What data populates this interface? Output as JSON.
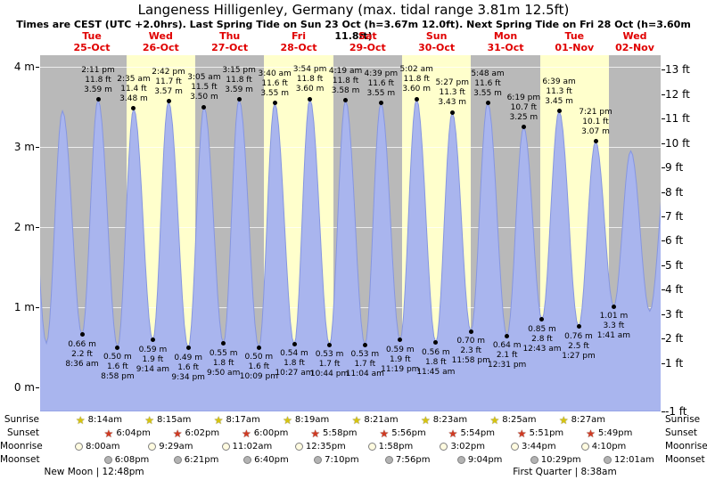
{
  "title": "Langeness Hilligenley, Germany (max. tidal range 3.81m 12.5ft)",
  "subtitle": "Times are CEST (UTC +2.0hrs). Last Spring Tide on Sun 23 Oct (h=3.67m 12.0ft). Next Spring Tide on Fri 28 Oct (h=3.60m 11.8ft)",
  "days": [
    {
      "name": "Tue",
      "date": "25-Oct"
    },
    {
      "name": "Wed",
      "date": "26-Oct"
    },
    {
      "name": "Thu",
      "date": "27-Oct"
    },
    {
      "name": "Fri",
      "date": "28-Oct"
    },
    {
      "name": "Sat",
      "date": "29-Oct"
    },
    {
      "name": "Sun",
      "date": "30-Oct"
    },
    {
      "name": "Mon",
      "date": "31-Oct"
    },
    {
      "name": "Tue",
      "date": "01-Nov"
    },
    {
      "name": "Wed",
      "date": "02-Nov"
    }
  ],
  "axes": {
    "left_labels": [
      "4 m",
      "3 m",
      "2 m",
      "1 m",
      "0 m"
    ],
    "left_values_m": [
      4,
      3,
      2,
      1,
      0
    ],
    "right_labels": [
      "13 ft",
      "12 ft",
      "11 ft",
      "10 ft",
      "9 ft",
      "8 ft",
      "7 ft",
      "6 ft",
      "5 ft",
      "4 ft",
      "3 ft",
      "2 ft",
      "1 ft",
      "-1 ft"
    ],
    "right_values_ft": [
      13,
      12,
      11,
      10,
      9,
      8,
      7,
      6,
      5,
      4,
      3,
      2,
      1,
      -1
    ]
  },
  "chart_data": {
    "type": "area",
    "x_unit": "hours from Tue 25-Oct 00:00 (CEST)",
    "x_range_hours": [
      -6,
      210
    ],
    "ylim_m": [
      -0.3,
      4.14
    ],
    "ylabel_left": "m",
    "ylabel_right": "ft",
    "max_tidal_range": "3.81m 12.5ft",
    "tide_events": [
      {
        "t": -10.3,
        "m": 3.5,
        "kind": "high",
        "labeled": false
      },
      {
        "t": -3.8,
        "m": 0.55,
        "kind": "low",
        "labeled": false
      },
      {
        "t": 1.78,
        "m": 3.45,
        "kind": "high",
        "labeled": false
      },
      {
        "t": 8.6,
        "m": 0.66,
        "kind": "low",
        "labeled": true,
        "time": "8:36 am",
        "ft": "2.2 ft",
        "m_label": "0.66 m"
      },
      {
        "t": 14.18,
        "m": 3.59,
        "kind": "high",
        "labeled": true,
        "time": "2:11 pm",
        "ft": "11.8 ft",
        "m_label": "3.59 m"
      },
      {
        "t": 20.97,
        "m": 0.5,
        "kind": "low",
        "labeled": true,
        "time": "8:58 pm",
        "ft": "1.6 ft",
        "m_label": "0.50 m"
      },
      {
        "t": 26.58,
        "m": 3.48,
        "kind": "high",
        "labeled": true,
        "time": "2:35 am",
        "ft": "11.4 ft",
        "m_label": "3.48 m"
      },
      {
        "t": 33.23,
        "m": 0.59,
        "kind": "low",
        "labeled": true,
        "time": "9:14 am",
        "ft": "1.9 ft",
        "m_label": "0.59 m"
      },
      {
        "t": 38.7,
        "m": 3.57,
        "kind": "high",
        "labeled": true,
        "time": "2:42 pm",
        "ft": "11.7 ft",
        "m_label": "3.57 m"
      },
      {
        "t": 45.57,
        "m": 0.49,
        "kind": "low",
        "labeled": true,
        "time": "9:34 pm",
        "ft": "1.6 ft",
        "m_label": "0.49 m"
      },
      {
        "t": 51.08,
        "m": 3.5,
        "kind": "high",
        "labeled": true,
        "time": "3:05 am",
        "ft": "11.5 ft",
        "m_label": "3.50 m"
      },
      {
        "t": 57.83,
        "m": 0.55,
        "kind": "low",
        "labeled": true,
        "time": "9:50 am",
        "ft": "1.8 ft",
        "m_label": "0.55 m"
      },
      {
        "t": 63.25,
        "m": 3.59,
        "kind": "high",
        "labeled": true,
        "time": "3:15 pm",
        "ft": "11.8 ft",
        "m_label": "3.59 m"
      },
      {
        "t": 70.15,
        "m": 0.5,
        "kind": "low",
        "labeled": true,
        "time": "10:09 pm",
        "ft": "1.6 ft",
        "m_label": "0.50 m"
      },
      {
        "t": 75.67,
        "m": 3.55,
        "kind": "high",
        "labeled": true,
        "time": "3:40 am",
        "ft": "11.6 ft",
        "m_label": "3.55 m"
      },
      {
        "t": 82.45,
        "m": 0.54,
        "kind": "low",
        "labeled": true,
        "time": "10:27 am",
        "ft": "1.8 ft",
        "m_label": "0.54 m"
      },
      {
        "t": 87.9,
        "m": 3.6,
        "kind": "high",
        "labeled": true,
        "time": "3:54 pm",
        "ft": "11.8 ft",
        "m_label": "3.60 m"
      },
      {
        "t": 94.73,
        "m": 0.53,
        "kind": "low",
        "labeled": true,
        "time": "10:44 pm",
        "ft": "1.7 ft",
        "m_label": "0.53 m"
      },
      {
        "t": 100.32,
        "m": 3.58,
        "kind": "high",
        "labeled": true,
        "time": "4:19 am",
        "ft": "11.8 ft",
        "m_label": "3.58 m"
      },
      {
        "t": 107.07,
        "m": 0.53,
        "kind": "low",
        "labeled": true,
        "time": "11:04 am",
        "ft": "1.7 ft",
        "m_label": "0.53 m"
      },
      {
        "t": 112.65,
        "m": 3.55,
        "kind": "high",
        "labeled": true,
        "time": "4:39 pm",
        "ft": "11.6 ft",
        "m_label": "3.55 m"
      },
      {
        "t": 119.32,
        "m": 0.59,
        "kind": "low",
        "labeled": true,
        "time": "11:19 pm",
        "ft": "1.9 ft",
        "m_label": "0.59 m"
      },
      {
        "t": 125.03,
        "m": 3.6,
        "kind": "high",
        "labeled": true,
        "time": "5:02 am",
        "ft": "11.8 ft",
        "m_label": "3.60 m"
      },
      {
        "t": 131.75,
        "m": 0.56,
        "kind": "low",
        "labeled": true,
        "time": "11:45 am",
        "ft": "1.8 ft",
        "m_label": "0.56 m"
      },
      {
        "t": 137.45,
        "m": 3.43,
        "kind": "high",
        "labeled": true,
        "time": "5:27 pm",
        "ft": "11.3 ft",
        "m_label": "3.43 m"
      },
      {
        "t": 143.97,
        "m": 0.7,
        "kind": "low",
        "labeled": true,
        "time": "11:58 pm",
        "ft": "2.3 ft",
        "m_label": "0.70 m"
      },
      {
        "t": 149.8,
        "m": 3.55,
        "kind": "high",
        "labeled": true,
        "time": "5:48 am",
        "ft": "11.6 ft",
        "m_label": "3.55 m"
      },
      {
        "t": 156.52,
        "m": 0.64,
        "kind": "low",
        "labeled": true,
        "time": "12:31 pm",
        "ft": "2.1 ft",
        "m_label": "0.64 m"
      },
      {
        "t": 162.32,
        "m": 3.25,
        "kind": "high",
        "labeled": true,
        "time": "6:19 pm",
        "ft": "10.7 ft",
        "m_label": "3.25 m"
      },
      {
        "t": 168.72,
        "m": 0.85,
        "kind": "low",
        "labeled": true,
        "time": "12:43 am",
        "ft": "2.8 ft",
        "m_label": "0.85 m"
      },
      {
        "t": 174.65,
        "m": 3.45,
        "kind": "high",
        "labeled": true,
        "time": "6:39 am",
        "ft": "11.3 ft",
        "m_label": "3.45 m"
      },
      {
        "t": 181.45,
        "m": 0.76,
        "kind": "low",
        "labeled": true,
        "time": "1:27 pm",
        "ft": "2.5 ft",
        "m_label": "0.76 m"
      },
      {
        "t": 187.35,
        "m": 3.07,
        "kind": "high",
        "labeled": true,
        "time": "7:21 pm",
        "ft": "10.1 ft",
        "m_label": "3.07 m"
      },
      {
        "t": 193.68,
        "m": 1.01,
        "kind": "low",
        "labeled": true,
        "time": "1:41 am",
        "ft": "3.3 ft",
        "m_label": "1.01 m"
      },
      {
        "t": 199.6,
        "m": 2.95,
        "kind": "high",
        "labeled": false
      },
      {
        "t": 206.2,
        "m": 0.95,
        "kind": "low",
        "labeled": false
      },
      {
        "t": 212.7,
        "m": 3.0,
        "kind": "high",
        "labeled": false
      }
    ]
  },
  "astro": {
    "rows": [
      {
        "name": "Sunrise",
        "icon": "star",
        "icon_color": "#d6c40f",
        "entries": [
          {
            "time": "8:14am",
            "day": 0
          },
          {
            "time": "8:15am",
            "day": 1
          },
          {
            "time": "8:17am",
            "day": 2
          },
          {
            "time": "8:19am",
            "day": 3
          },
          {
            "time": "8:21am",
            "day": 4
          },
          {
            "time": "8:23am",
            "day": 5
          },
          {
            "time": "8:25am",
            "day": 6
          },
          {
            "time": "8:27am",
            "day": 7
          }
        ]
      },
      {
        "name": "Sunset",
        "icon": "star",
        "icon_color": "#d03a22",
        "entries": [
          {
            "time": "6:04pm",
            "day": 0
          },
          {
            "time": "6:02pm",
            "day": 1
          },
          {
            "time": "6:00pm",
            "day": 2
          },
          {
            "time": "5:58pm",
            "day": 3
          },
          {
            "time": "5:56pm",
            "day": 4
          },
          {
            "time": "5:54pm",
            "day": 5
          },
          {
            "time": "5:51pm",
            "day": 6
          },
          {
            "time": "5:49pm",
            "day": 7
          }
        ]
      },
      {
        "name": "Moonrise",
        "icon": "circle",
        "icon_color": "#fffbe0",
        "entries": [
          {
            "time": "8:00am",
            "day": 0
          },
          {
            "time": "9:29am",
            "day": 1
          },
          {
            "time": "11:02am",
            "day": 2
          },
          {
            "time": "12:35pm",
            "day": 3
          },
          {
            "time": "1:58pm",
            "day": 4
          },
          {
            "time": "3:02pm",
            "day": 5
          },
          {
            "time": "3:44pm",
            "day": 6
          },
          {
            "time": "4:10pm",
            "day": 7
          }
        ]
      },
      {
        "name": "Moonset",
        "icon": "circle",
        "icon_color": "#b3b3b3",
        "entries": [
          {
            "time": "6:08pm",
            "day": 0
          },
          {
            "time": "6:21pm",
            "day": 1
          },
          {
            "time": "6:40pm",
            "day": 2
          },
          {
            "time": "7:10pm",
            "day": 3
          },
          {
            "time": "7:56pm",
            "day": 4
          },
          {
            "time": "9:04pm",
            "day": 5
          },
          {
            "time": "10:29pm",
            "day": 6
          },
          {
            "time": "12:01am",
            "day": 8
          }
        ]
      }
    ],
    "moon_phases": [
      {
        "label": "New Moon | 12:48pm",
        "name": "New Moon",
        "time": "12:48pm",
        "day": 0
      },
      {
        "label": "First Quarter | 8:38am",
        "name": "First Quarter",
        "time": "8:38am",
        "day": 7
      }
    ]
  },
  "colors": {
    "band_gray": "#b9b9b9",
    "band_yellow": "#ffffcc",
    "tide_fill": "#a9b5ee",
    "tide_stroke": "#8696e0",
    "day_label_red": "#e00000"
  }
}
